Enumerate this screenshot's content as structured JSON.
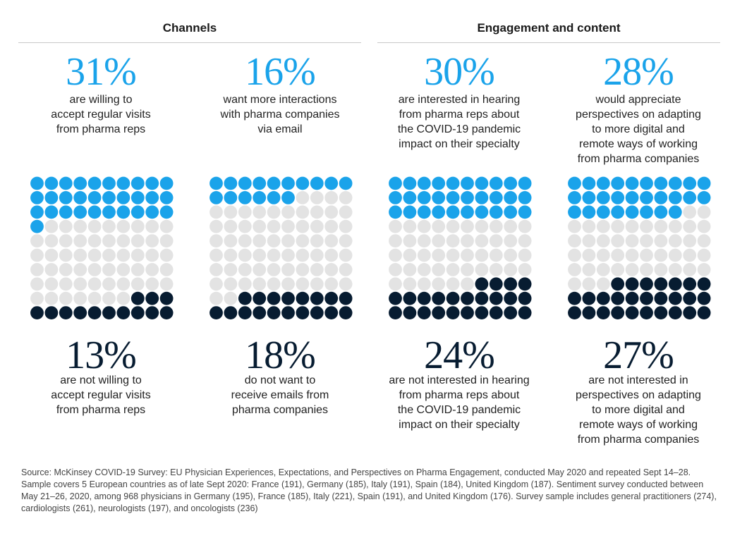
{
  "sections": [
    {
      "title": "Channels"
    },
    {
      "title": "Engagement and content"
    }
  ],
  "colors": {
    "willing": "#1aa3ea",
    "neutral": "#e3e3e3",
    "not_willing": "#071c31"
  },
  "chart_data": [
    {
      "type": "waffle",
      "top_value": "31%",
      "top_text": "are willing to\naccept regular visits\nfrom pharma reps",
      "bottom_value": "13%",
      "bottom_text": "are not willing to\naccept regular visits\nfrom pharma reps",
      "blue": 31,
      "navy": 13,
      "total": 100
    },
    {
      "type": "waffle",
      "top_value": "16%",
      "top_text": "want more interactions\nwith pharma companies\nvia email",
      "bottom_value": "18%",
      "bottom_text": "do not want to\nreceive emails from\npharma companies",
      "blue": 16,
      "navy": 18,
      "total": 100
    },
    {
      "type": "waffle",
      "top_value": "30%",
      "top_text": "are interested in hearing\nfrom pharma reps about\nthe COVID-19 pandemic\nimpact on their specialty",
      "bottom_value": "24%",
      "bottom_text": "are not interested in hearing\nfrom pharma reps about\nthe COVID-19 pandemic\nimpact on their specialty",
      "blue": 30,
      "navy": 24,
      "total": 100
    },
    {
      "type": "waffle",
      "top_value": "28%",
      "top_text": "would appreciate\nperspectives on adapting\nto more digital and\nremote ways of working\nfrom pharma companies",
      "bottom_value": "27%",
      "bottom_text": "are not interested in\nperspectives on adapting\nto more digital and\nremote ways of working\nfrom pharma companies",
      "blue": 28,
      "navy": 27,
      "total": 100
    }
  ],
  "source": "Source: McKinsey COVID-19 Survey: EU Physician Experiences, Expectations, and Perspectives on Pharma Engagement, conducted May 2020 and repeated Sept 14–28. Sample covers 5 European countries as of late Sept 2020: France (191), Germany (185), Italy (191), Spain (184), United Kingdom (187). Sentiment survey conducted between May 21–26, 2020, among 968 physicians in Germany (195), France (185), Italy (221), Spain (191), and United Kingdom (176). Survey sample includes general practitioners (274), cardiologists (261), neurologists (197), and oncologists (236)"
}
